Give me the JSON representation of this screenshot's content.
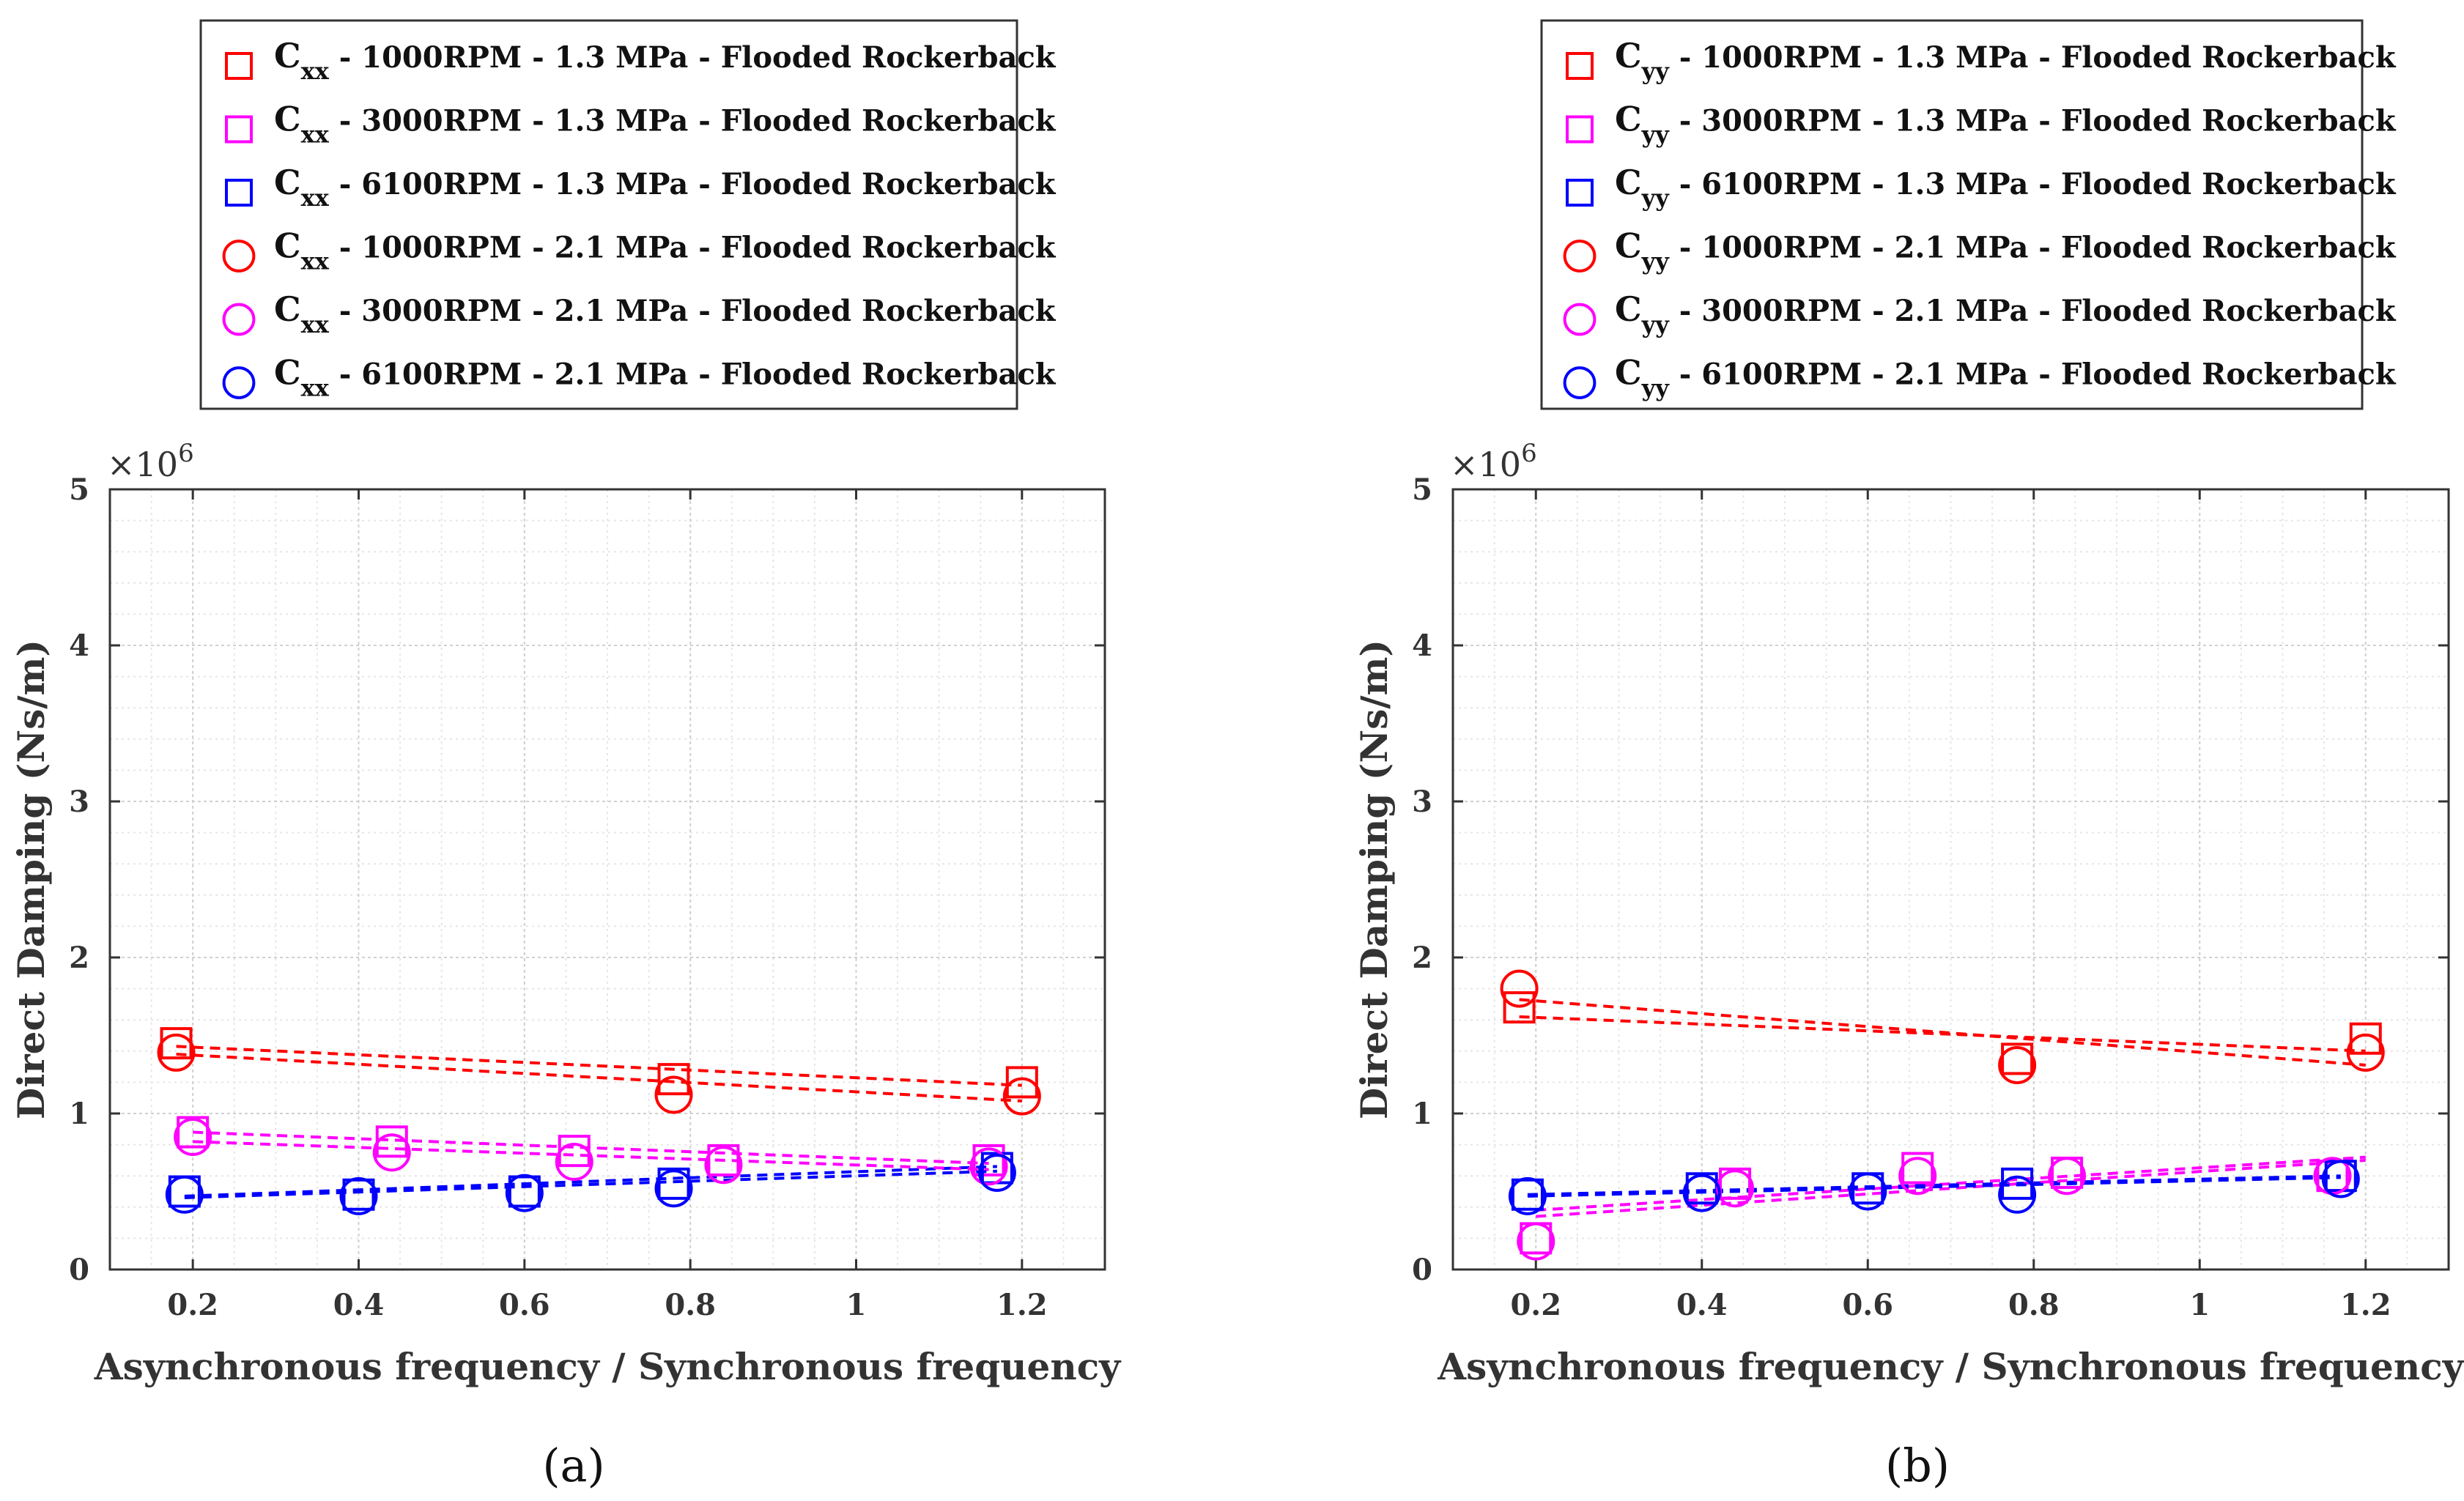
{
  "chart_data": [
    {
      "type": "scatter",
      "panel_label": "(a)",
      "ylabel": "Direct Damping (Ns/m)",
      "xlabel": "Asynchronous frequency / Synchronous frequency",
      "y_multiplier": "×10",
      "y_exponent": "6",
      "xlim": [
        0.1,
        1.3
      ],
      "ylim": [
        0,
        5
      ],
      "xticks": [
        "0.2",
        "0.4",
        "0.6",
        "0.8",
        "1",
        "1.2"
      ],
      "yticks": [
        "0",
        "1",
        "2",
        "3",
        "4",
        "5"
      ],
      "grid": true,
      "legend": "top",
      "series": [
        {
          "sym": "C",
          "sub": "xx",
          "rest": " - 1000RPM - 1.3 MPa - Flooded Rockerback",
          "color": "#ff0000",
          "marker": "square",
          "x": [
            0.18,
            0.78,
            1.2
          ],
          "y": [
            1.45,
            1.22,
            1.2
          ],
          "fit": [
            [
              0.18,
              1.43
            ],
            [
              1.2,
              1.18
            ]
          ]
        },
        {
          "sym": "C",
          "sub": "xx",
          "rest": " - 3000RPM - 1.3 MPa - Flooded Rockerback",
          "color": "#ff00ff",
          "marker": "square",
          "x": [
            0.2,
            0.44,
            0.66,
            0.84,
            1.16
          ],
          "y": [
            0.88,
            0.82,
            0.76,
            0.7,
            0.7
          ],
          "fit": [
            [
              0.2,
              0.88
            ],
            [
              1.16,
              0.68
            ]
          ]
        },
        {
          "sym": "C",
          "sub": "xx",
          "rest": " - 6100RPM - 1.3 MPa - Flooded Rockerback",
          "color": "#0000ff",
          "marker": "square",
          "x": [
            0.19,
            0.4,
            0.6,
            0.78,
            1.17
          ],
          "y": [
            0.5,
            0.48,
            0.5,
            0.55,
            0.65
          ],
          "fit": [
            [
              0.19,
              0.47
            ],
            [
              1.17,
              0.66
            ]
          ]
        },
        {
          "sym": "C",
          "sub": "xx",
          "rest": " - 1000RPM - 2.1 MPa - Flooded Rockerback",
          "color": "#ff0000",
          "marker": "circle",
          "x": [
            0.18,
            0.78,
            1.2
          ],
          "y": [
            1.39,
            1.12,
            1.11
          ],
          "fit": [
            [
              0.18,
              1.38
            ],
            [
              1.2,
              1.08
            ]
          ]
        },
        {
          "sym": "C",
          "sub": "xx",
          "rest": " - 3000RPM - 2.1 MPa - Flooded Rockerback",
          "color": "#ff00ff",
          "marker": "circle",
          "x": [
            0.2,
            0.44,
            0.66,
            0.84,
            1.16
          ],
          "y": [
            0.85,
            0.75,
            0.69,
            0.67,
            0.66
          ],
          "fit": [
            [
              0.2,
              0.82
            ],
            [
              1.16,
              0.64
            ]
          ]
        },
        {
          "sym": "C",
          "sub": "xx",
          "rest": " - 6100RPM - 2.1 MPa - Flooded Rockerback",
          "color": "#0000ff",
          "marker": "circle",
          "x": [
            0.19,
            0.4,
            0.6,
            0.78,
            1.17
          ],
          "y": [
            0.48,
            0.47,
            0.49,
            0.52,
            0.62
          ],
          "fit": [
            [
              0.19,
              0.46
            ],
            [
              1.17,
              0.63
            ]
          ]
        }
      ]
    },
    {
      "type": "scatter",
      "panel_label": "(b)",
      "ylabel": "Direct Damping (Ns/m)",
      "xlabel": "Asynchronous frequency / Synchronous frequency",
      "y_multiplier": "×10",
      "y_exponent": "6",
      "xlim": [
        0.1,
        1.3
      ],
      "ylim": [
        0,
        5
      ],
      "xticks": [
        "0.2",
        "0.4",
        "0.6",
        "0.8",
        "1",
        "1.2"
      ],
      "yticks": [
        "0",
        "1",
        "2",
        "3",
        "4",
        "5"
      ],
      "grid": true,
      "legend": "top",
      "series": [
        {
          "sym": "C",
          "sub": "yy",
          "rest": " - 1000RPM - 1.3 MPa - Flooded Rockerback",
          "color": "#ff0000",
          "marker": "square",
          "x": [
            0.18,
            0.78,
            1.2
          ],
          "y": [
            1.68,
            1.35,
            1.48
          ],
          "fit": [
            [
              0.18,
              1.62
            ],
            [
              1.2,
              1.4
            ]
          ]
        },
        {
          "sym": "C",
          "sub": "yy",
          "rest": " - 3000RPM - 1.3 MPa - Flooded Rockerback",
          "color": "#ff00ff",
          "marker": "square",
          "x": [
            0.2,
            0.44,
            0.66,
            0.84,
            1.16
          ],
          "y": [
            0.2,
            0.55,
            0.65,
            0.62,
            0.6
          ],
          "fit": [
            [
              0.2,
              0.38
            ],
            [
              1.2,
              0.72
            ]
          ]
        },
        {
          "sym": "C",
          "sub": "yy",
          "rest": " - 6100RPM - 1.3 MPa - Flooded Rockerback",
          "color": "#0000ff",
          "marker": "square",
          "x": [
            0.19,
            0.4,
            0.6,
            0.78,
            1.17
          ],
          "y": [
            0.48,
            0.52,
            0.52,
            0.55,
            0.6
          ],
          "fit": [
            [
              0.19,
              0.48
            ],
            [
              1.17,
              0.6
            ]
          ]
        },
        {
          "sym": "C",
          "sub": "yy",
          "rest": " - 1000RPM - 2.1 MPa - Flooded Rockerback",
          "color": "#ff0000",
          "marker": "circle",
          "x": [
            0.18,
            0.78,
            1.2
          ],
          "y": [
            1.8,
            1.31,
            1.39
          ],
          "fit": [
            [
              0.18,
              1.73
            ],
            [
              1.2,
              1.31
            ]
          ]
        },
        {
          "sym": "C",
          "sub": "yy",
          "rest": " - 3000RPM - 2.1 MPa - Flooded Rockerback",
          "color": "#ff00ff",
          "marker": "circle",
          "x": [
            0.2,
            0.44,
            0.66,
            0.84,
            1.16
          ],
          "y": [
            0.18,
            0.52,
            0.6,
            0.6,
            0.6
          ],
          "fit": [
            [
              0.2,
              0.34
            ],
            [
              1.2,
              0.7
            ]
          ]
        },
        {
          "sym": "C",
          "sub": "yy",
          "rest": " - 6100RPM - 2.1 MPa - Flooded Rockerback",
          "color": "#0000ff",
          "marker": "circle",
          "x": [
            0.19,
            0.4,
            0.6,
            0.78,
            1.17
          ],
          "y": [
            0.47,
            0.49,
            0.5,
            0.48,
            0.58
          ],
          "fit": [
            [
              0.19,
              0.47
            ],
            [
              1.17,
              0.59
            ]
          ]
        }
      ]
    }
  ]
}
